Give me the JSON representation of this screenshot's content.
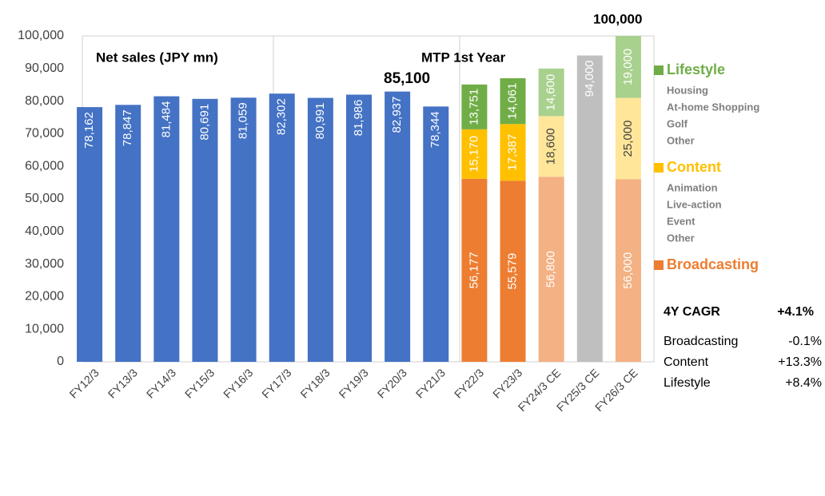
{
  "chart_data": {
    "type": "stacked_bar",
    "categories": [
      "FY12/3",
      "FY13/3",
      "FY14/3",
      "FY15/3",
      "FY16/3",
      "FY17/3",
      "FY18/3",
      "FY19/3",
      "FY20/3",
      "FY21/3",
      "FY22/3",
      "FY23/3",
      "FY24/3 CE",
      "FY25/3 CE",
      "FY26/3 CE"
    ],
    "ylim": [
      0,
      100000
    ],
    "yticks": [
      0,
      {
        "value": 10000,
        "label": "10,000"
      },
      {
        "value": 20000,
        "label": "20,000"
      },
      {
        "value": 30000,
        "label": "30,000"
      },
      {
        "value": 40000,
        "label": "40,000"
      },
      {
        "value": 50000,
        "label": "50,000"
      },
      {
        "value": 60000,
        "label": "60,000"
      },
      {
        "value": 70000,
        "label": "70,000"
      },
      {
        "value": 80000,
        "label": "80,000"
      },
      {
        "value": 90000,
        "label": "90,000"
      },
      {
        "value": 100000,
        "label": "100,000"
      }
    ],
    "series": [
      {
        "color": "#4472c4",
        "values": [
          78162,
          78847,
          81484,
          80691,
          81059,
          82302,
          80991,
          81986,
          82937,
          78344,
          null,
          null,
          null,
          null,
          null
        ],
        "value_labels": [
          "78,162",
          "78,847",
          "81,484",
          "80,691",
          "81,059",
          "82,302",
          "80,991",
          "81,986",
          "82,937",
          "78,344",
          null,
          null,
          null,
          null,
          null
        ]
      },
      {
        "name": "Broadcasting",
        "color": "#ed7d31",
        "colors": [
          null,
          null,
          null,
          null,
          null,
          null,
          null,
          null,
          null,
          null,
          "#ed7d31",
          "#ed7d31",
          "#f4b183",
          null,
          "#f4b183"
        ],
        "values": [
          null,
          null,
          null,
          null,
          null,
          null,
          null,
          null,
          null,
          null,
          56177,
          55579,
          56800,
          null,
          56000
        ],
        "value_labels": [
          null,
          null,
          null,
          null,
          null,
          null,
          null,
          null,
          null,
          null,
          "56,177",
          "55,579",
          "56,800",
          null,
          "56,000"
        ],
        "sub_items": []
      },
      {
        "name": "Content",
        "color": "#ffc000",
        "colors": [
          null,
          null,
          null,
          null,
          null,
          null,
          null,
          null,
          null,
          null,
          "#ffc000",
          "#ffc000",
          "#ffe699",
          null,
          "#ffe699"
        ],
        "values": [
          null,
          null,
          null,
          null,
          null,
          null,
          null,
          null,
          null,
          null,
          15170,
          17387,
          18600,
          null,
          25000
        ],
        "value_labels": [
          null,
          null,
          null,
          null,
          null,
          null,
          null,
          null,
          null,
          null,
          "15,170",
          "17,387",
          "18,600",
          null,
          "25,000"
        ],
        "sub_items": [
          "Animation",
          "Live-action",
          "Event",
          "Other"
        ]
      },
      {
        "name": "Lifestyle",
        "color": "#70ad47",
        "colors": [
          null,
          null,
          null,
          null,
          null,
          null,
          null,
          null,
          null,
          null,
          "#70ad47",
          "#70ad47",
          "#a9d18e",
          null,
          "#a9d18e"
        ],
        "values": [
          null,
          null,
          null,
          null,
          null,
          null,
          null,
          null,
          null,
          null,
          13751,
          14061,
          14600,
          null,
          19000
        ],
        "value_labels": [
          null,
          null,
          null,
          null,
          null,
          null,
          null,
          null,
          null,
          null,
          "13,751",
          "14,061",
          "14,600",
          null,
          "19,000"
        ],
        "sub_items": [
          "Housing",
          "At-home Shopping",
          "Golf",
          "Other"
        ]
      },
      {
        "color": "#bfbfbf",
        "values": [
          null,
          null,
          null,
          null,
          null,
          null,
          null,
          null,
          null,
          null,
          null,
          null,
          null,
          94000,
          null
        ],
        "value_labels": [
          null,
          null,
          null,
          null,
          null,
          null,
          null,
          null,
          null,
          null,
          null,
          null,
          null,
          "94,000",
          null
        ]
      }
    ],
    "annotations": {
      "net_sales": "Net sales (JPY mn)",
      "mtp": "MTP 1st Year",
      "fy22_total": "85,100",
      "fy26_total": "100,000"
    },
    "cagr": {
      "title": "4Y CAGR",
      "value": "+4.1%",
      "rows": [
        {
          "name": "Broadcasting",
          "value": "-0.1%"
        },
        {
          "name": "Content",
          "value": "+13.3%"
        },
        {
          "name": "Lifestyle",
          "value": "+8.4%"
        }
      ]
    }
  }
}
